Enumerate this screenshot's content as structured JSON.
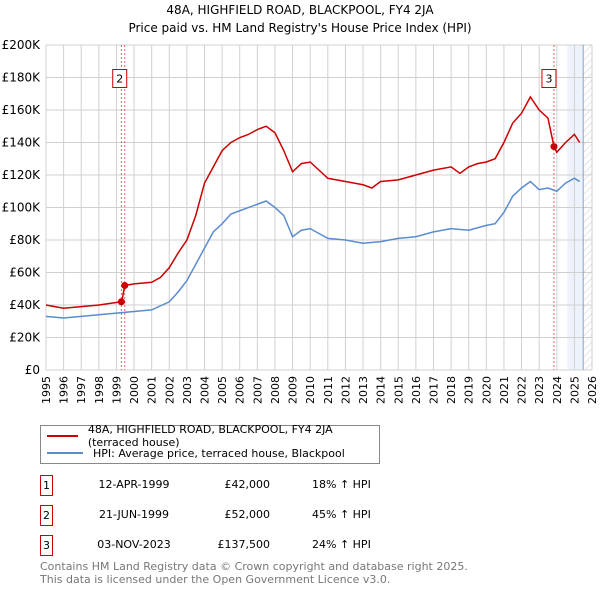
{
  "chart_data": {
    "type": "line",
    "title": "48A, HIGHFIELD ROAD, BLACKPOOL, FY4 2JA",
    "subtitle": "Price paid vs. HM Land Registry's House Price Index (HPI)",
    "xlim": [
      1995,
      2026
    ],
    "ylim": [
      0,
      200000
    ],
    "yticks": [
      "£0",
      "£20K",
      "£40K",
      "£60K",
      "£80K",
      "£100K",
      "£120K",
      "£140K",
      "£160K",
      "£180K",
      "£200K"
    ],
    "xticks": [
      "1995",
      "1996",
      "1997",
      "1998",
      "1999",
      "2000",
      "2001",
      "2002",
      "2003",
      "2004",
      "2005",
      "2006",
      "2007",
      "2008",
      "2009",
      "2010",
      "2011",
      "2012",
      "2013",
      "2014",
      "2015",
      "2016",
      "2017",
      "2018",
      "2019",
      "2020",
      "2021",
      "2022",
      "2023",
      "2024",
      "2025",
      "2026"
    ],
    "grid": true,
    "series": [
      {
        "name": "48A, HIGHFIELD ROAD, BLACKPOOL, FY4 2JA (terraced house)",
        "color": "#cc0000",
        "x": [
          1995,
          1996,
          1997,
          1998,
          1999.28,
          1999.3,
          1999.47,
          2000,
          2001,
          2001.5,
          2002,
          2002.5,
          2003,
          2003.5,
          2004,
          2004.5,
          2005,
          2005.5,
          2006,
          2006.5,
          2007,
          2007.5,
          2008,
          2008.5,
          2009,
          2009.5,
          2010,
          2010.5,
          2011,
          2012,
          2013,
          2013.5,
          2014,
          2015,
          2016,
          2017,
          2018,
          2018.5,
          2019,
          2019.5,
          2020,
          2020.5,
          2021,
          2021.5,
          2022,
          2022.5,
          2023,
          2023.5,
          2023.84,
          2024,
          2024.5,
          2025,
          2025.3
        ],
        "y": [
          40000,
          38000,
          39000,
          40000,
          42000,
          42000,
          52000,
          53000,
          54000,
          57000,
          63000,
          72000,
          80000,
          95000,
          115000,
          125000,
          135000,
          140000,
          143000,
          145000,
          148000,
          150000,
          146000,
          135000,
          122000,
          127000,
          128000,
          123000,
          118000,
          116000,
          114000,
          112000,
          116000,
          117000,
          120000,
          123000,
          125000,
          121000,
          125000,
          127000,
          128000,
          130000,
          140000,
          152000,
          158000,
          168000,
          160000,
          155000,
          137500,
          134000,
          140000,
          145000,
          140000
        ]
      },
      {
        "name": "HPI: Average price, terraced house, Blackpool",
        "color": "#5b8bd0",
        "x": [
          1995,
          1996,
          1997,
          1998,
          1999,
          2000,
          2001,
          2002,
          2002.5,
          2003,
          2003.5,
          2004,
          2004.5,
          2005,
          2005.5,
          2006,
          2007,
          2007.5,
          2008,
          2008.5,
          2009,
          2009.5,
          2010,
          2011,
          2012,
          2013,
          2014,
          2015,
          2016,
          2017,
          2018,
          2019,
          2020,
          2020.5,
          2021,
          2021.5,
          2022,
          2022.5,
          2023,
          2023.5,
          2024,
          2024.5,
          2025,
          2025.3
        ],
        "y": [
          33000,
          32000,
          33000,
          34000,
          35000,
          36000,
          37000,
          42000,
          48000,
          55000,
          65000,
          75000,
          85000,
          90000,
          96000,
          98000,
          102000,
          104000,
          100000,
          95000,
          82000,
          86000,
          87000,
          81000,
          80000,
          78000,
          79000,
          81000,
          82000,
          85000,
          87000,
          86000,
          89000,
          90000,
          97000,
          107000,
          112000,
          116000,
          111000,
          112000,
          110000,
          115000,
          118000,
          116000
        ]
      }
    ],
    "sales": [
      {
        "n": "1",
        "x": 1999.28,
        "y": 42000,
        "date": "12-APR-1999",
        "price": "£42,000",
        "hpi": "18% ↑ HPI"
      },
      {
        "n": "2",
        "x": 1999.47,
        "y": 52000,
        "date": "21-JUN-1999",
        "price": "£52,000",
        "hpi": "45% ↑ HPI"
      },
      {
        "n": "3",
        "x": 2023.84,
        "y": 137500,
        "date": "03-NOV-2023",
        "price": "£137,500",
        "hpi": "24% ↑ HPI"
      }
    ],
    "forecast_start": 2024.6,
    "hatch_start": 2025.5
  },
  "legend": {
    "red": "48A, HIGHFIELD ROAD, BLACKPOOL, FY4 2JA (terraced house)",
    "blue": "HPI: Average price, terraced house, Blackpool"
  },
  "footer": {
    "line1": "Contains HM Land Registry data © Crown copyright and database right 2025.",
    "line2": "This data is licensed under the Open Government Licence v3.0."
  }
}
